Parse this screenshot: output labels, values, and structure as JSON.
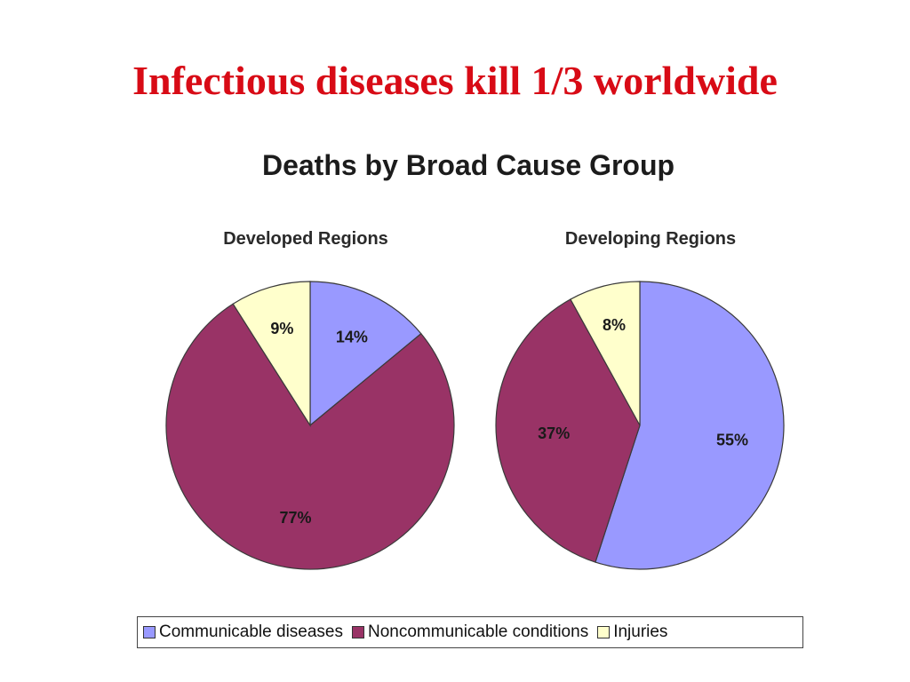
{
  "slide": {
    "title": "Infectious diseases kill 1/3 worldwide"
  },
  "chart_data": {
    "type": "pie",
    "title": "Deaths by Broad Cause Group",
    "categories": [
      "Communicable diseases",
      "Noncommunicable conditions",
      "Injuries"
    ],
    "colors": [
      "#9999ff",
      "#993366",
      "#ffffcc"
    ],
    "pies": [
      {
        "name": "Developed Regions",
        "values": [
          14,
          77,
          9
        ],
        "labels": [
          "14%",
          "77%",
          "9%"
        ]
      },
      {
        "name": "Developing Regions",
        "values": [
          55,
          37,
          8
        ],
        "labels": [
          "55%",
          "37%",
          "8%"
        ]
      }
    ],
    "legend": {
      "placement": "bottom",
      "entries": [
        "Communicable diseases",
        "Noncommunicable conditions",
        "Injuries"
      ]
    }
  }
}
